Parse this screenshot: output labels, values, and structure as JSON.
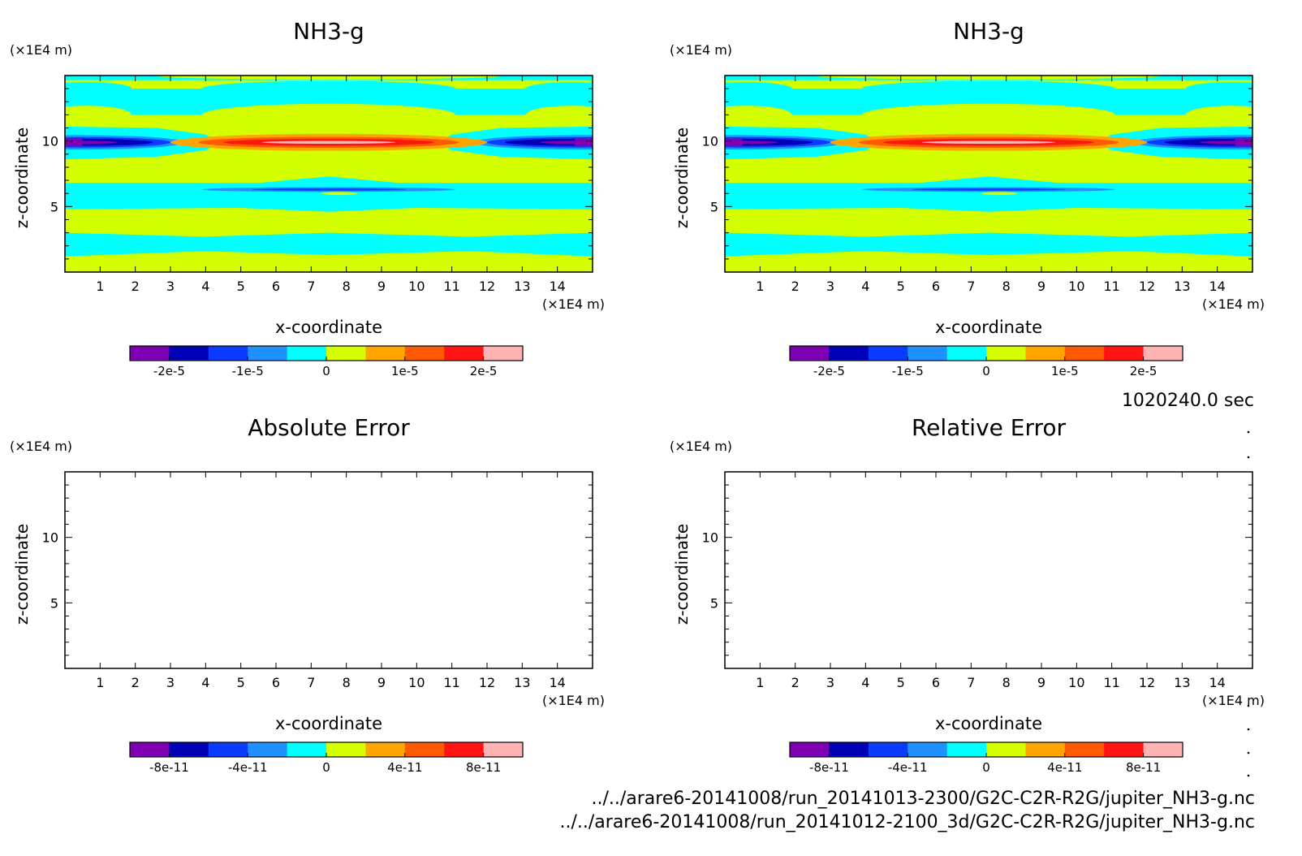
{
  "time_label": "1020240.0 sec",
  "file_paths": [
    "../../arare6-20141008/run_20141013-2300/G2C-C2R-R2G/jupiter_NH3-g.nc",
    "../../arare6-20141008/run_20141012-2100_3d/G2C-C2R-R2G/jupiter_NH3-g.nc"
  ],
  "colors": {
    "palette": [
      "#7f00b2",
      "#0000b4",
      "#0a3cff",
      "#1e90ff",
      "#00ffff",
      "#d4ff00",
      "#ffa500",
      "#ff5a00",
      "#ff1414",
      "#ffb4b4"
    ]
  },
  "chart_data": [
    {
      "type": "heatmap",
      "title": "NH3-g",
      "xlabel": "x-coordinate",
      "ylabel": "z-coordinate",
      "x_unit": "(×1E4 m)",
      "y_unit": "(×1E4 m)",
      "xlim": [
        0,
        15
      ],
      "ylim": [
        0,
        15
      ],
      "xticks": [
        "1",
        "2",
        "3",
        "4",
        "5",
        "6",
        "7",
        "8",
        "9",
        "10",
        "11",
        "12",
        "13",
        "14"
      ],
      "yticks": [
        "5",
        "10"
      ],
      "contour_levels": [
        -2.5e-05,
        -2e-05,
        -1.5e-05,
        -1e-05,
        -5e-06,
        0,
        5e-06,
        1e-05,
        1.5e-05,
        2e-05,
        2.5e-05
      ],
      "colorbar_ticks": [
        "-2e-5",
        "-1e-5",
        "0",
        "1e-5",
        "2e-5"
      ],
      "field": "filled"
    },
    {
      "type": "heatmap",
      "title": "NH3-g",
      "xlabel": "x-coordinate",
      "ylabel": "z-coordinate",
      "x_unit": "(×1E4 m)",
      "y_unit": "(×1E4 m)",
      "xlim": [
        0,
        15
      ],
      "ylim": [
        0,
        15
      ],
      "xticks": [
        "1",
        "2",
        "3",
        "4",
        "5",
        "6",
        "7",
        "8",
        "9",
        "10",
        "11",
        "12",
        "13",
        "14"
      ],
      "yticks": [
        "5",
        "10"
      ],
      "contour_levels": [
        -2.5e-05,
        -2e-05,
        -1.5e-05,
        -1e-05,
        -5e-06,
        0,
        5e-06,
        1e-05,
        1.5e-05,
        2e-05,
        2.5e-05
      ],
      "colorbar_ticks": [
        "-2e-5",
        "-1e-5",
        "0",
        "1e-5",
        "2e-5"
      ],
      "field": "filled"
    },
    {
      "type": "heatmap",
      "title": "Absolute Error",
      "xlabel": "x-coordinate",
      "ylabel": "z-coordinate",
      "x_unit": "(×1E4 m)",
      "y_unit": "(×1E4 m)",
      "xlim": [
        0,
        15
      ],
      "ylim": [
        0,
        15
      ],
      "xticks": [
        "1",
        "2",
        "3",
        "4",
        "5",
        "6",
        "7",
        "8",
        "9",
        "10",
        "11",
        "12",
        "13",
        "14"
      ],
      "yticks": [
        "5",
        "10"
      ],
      "contour_levels": [
        -1e-10,
        -8e-11,
        -6e-11,
        -4e-11,
        -2e-11,
        0,
        2e-11,
        4e-11,
        6e-11,
        8e-11,
        1e-10
      ],
      "colorbar_ticks": [
        "-8e-11",
        "-4e-11",
        "0",
        "4e-11",
        "8e-11"
      ],
      "field": "empty"
    },
    {
      "type": "heatmap",
      "title": "Relative Error",
      "xlabel": "x-coordinate",
      "ylabel": "z-coordinate",
      "x_unit": "(×1E4 m)",
      "y_unit": "(×1E4 m)",
      "xlim": [
        0,
        15
      ],
      "ylim": [
        0,
        15
      ],
      "xticks": [
        "1",
        "2",
        "3",
        "4",
        "5",
        "6",
        "7",
        "8",
        "9",
        "10",
        "11",
        "12",
        "13",
        "14"
      ],
      "yticks": [
        "5",
        "10"
      ],
      "contour_levels": [
        -1e-10,
        -8e-11,
        -6e-11,
        -4e-11,
        -2e-11,
        0,
        2e-11,
        4e-11,
        6e-11,
        8e-11,
        1e-10
      ],
      "colorbar_ticks": [
        "-8e-11",
        "-4e-11",
        "0",
        "4e-11",
        "8e-11"
      ],
      "field": "empty"
    }
  ]
}
